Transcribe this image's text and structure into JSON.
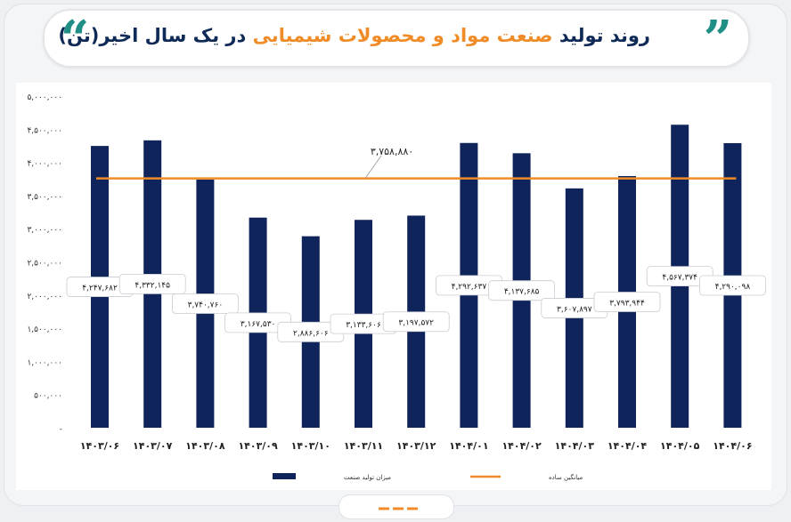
{
  "chart_data": {
    "type": "bar",
    "title": [
      "روند تولید ",
      "صنعت مواد و محصولات شیمیایی",
      " در یک سال اخیر(تن)"
    ],
    "categories": [
      "۱۴۰۳/۰۶",
      "۱۴۰۳/۰۷",
      "۱۴۰۳/۰۸",
      "۱۴۰۳/۰۹",
      "۱۴۰۳/۱۰",
      "۱۴۰۳/۱۱",
      "۱۴۰۳/۱۲",
      "۱۴۰۴/۰۱",
      "۱۴۰۴/۰۲",
      "۱۴۰۴/۰۳",
      "۱۴۰۴/۰۴",
      "۱۴۰۴/۰۵",
      "۱۴۰۴/۰۶"
    ],
    "series": [
      {
        "name": "میزان تولید صنعت",
        "color": "#10245c",
        "values": [
          4247682,
          4332145,
          3740760,
          3167530,
          2886606,
          3133606,
          3197572,
          4292637,
          4137685,
          3607897,
          3793944,
          4567374,
          4290098
        ],
        "value_labels": [
          "۴,۲۴۷,۶۸۲",
          "۴,۳۳۲,۱۴۵",
          "۳,۷۴۰,۷۶۰",
          "۳,۱۶۷,۵۳۰",
          "۲,۸۸۶,۶۰۶",
          "۳,۱۳۳,۶۰۶",
          "۳,۱۹۷,۵۷۲",
          "۴,۲۹۲,۶۳۷",
          "۴,۱۳۷,۶۸۵",
          "۳,۶۰۷,۸۹۷",
          "۳,۷۹۳,۹۴۴",
          "۴,۵۶۷,۳۷۴",
          "۴,۲۹۰,۰۹۸"
        ]
      }
    ],
    "average": {
      "name": "میانگین ساده",
      "color": "#f08c28",
      "value": 3758880,
      "label": "۳,۷۵۸,۸۸۰"
    },
    "ylim": [
      0,
      5000000
    ],
    "yticks": [
      {
        "value": 0,
        "label": "-"
      },
      {
        "value": 500000,
        "label": "۵۰۰,۰۰۰"
      },
      {
        "value": 1000000,
        "label": "۱,۰۰۰,۰۰۰"
      },
      {
        "value": 1500000,
        "label": "۱,۵۰۰,۰۰۰"
      },
      {
        "value": 2000000,
        "label": "۲,۰۰۰,۰۰۰"
      },
      {
        "value": 2500000,
        "label": "۲,۵۰۰,۰۰۰"
      },
      {
        "value": 3000000,
        "label": "۳,۰۰۰,۰۰۰"
      },
      {
        "value": 3500000,
        "label": "۳,۵۰۰,۰۰۰"
      },
      {
        "value": 4000000,
        "label": "۴,۰۰۰,۰۰۰"
      },
      {
        "value": 4500000,
        "label": "۴,۵۰۰,۰۰۰"
      },
      {
        "value": 5000000,
        "label": "۵,۰۰۰,۰۰۰"
      }
    ],
    "grid": false,
    "legend": "bottom"
  }
}
